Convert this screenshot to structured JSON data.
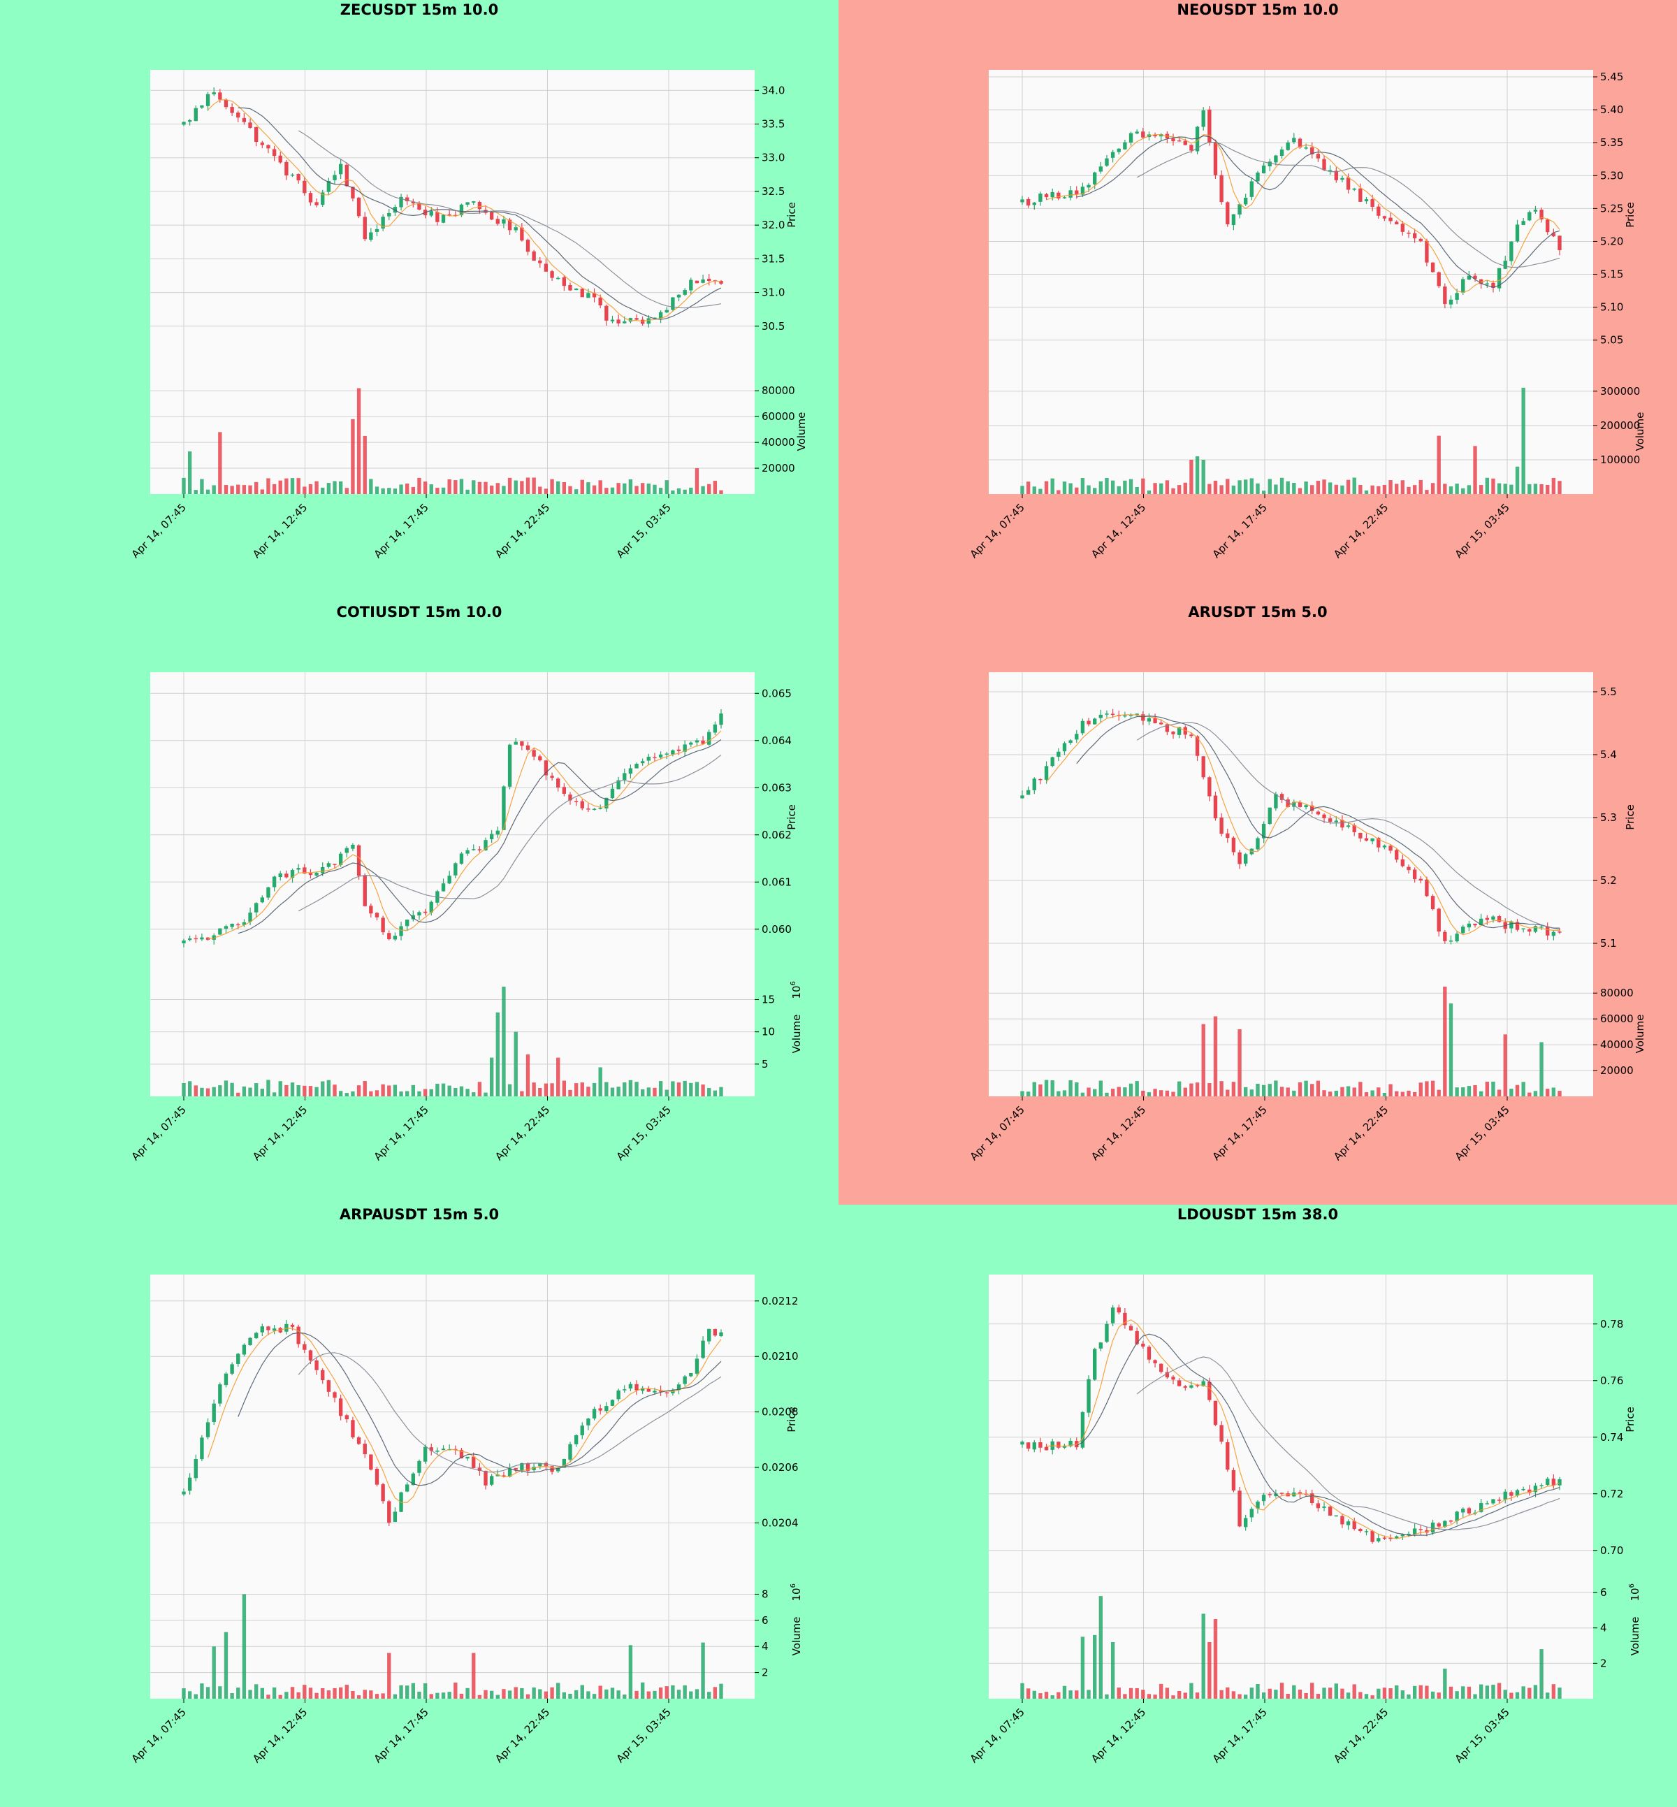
{
  "colors": {
    "bull_bg": "#8fffc4",
    "bear_bg": "#fca59a",
    "plot_bg": "#fafafa",
    "grid": "#d0d0d0",
    "up": "#26a96c",
    "down": "#e8444f",
    "ma_fast": "#f39a2e",
    "ma_slow": "#7e8590",
    "ma_mid": "#4a5a6a"
  },
  "x_ticks": [
    "Apr 14, 07:45",
    "Apr 14, 12:45",
    "Apr 14, 17:45",
    "Apr 14, 22:45",
    "Apr 15, 03:45"
  ],
  "price_label": "Price",
  "volume_label": "Volume",
  "charts": [
    {
      "title": "ZECUSDT 15m 10.0",
      "trend": "bull",
      "price_ticks": [
        "30.5",
        "31.0",
        "31.5",
        "32.0",
        "32.5",
        "33.0",
        "33.5",
        "34.0"
      ],
      "volume_ticks": [
        "20000",
        "40000",
        "60000",
        "80000"
      ],
      "volume_exp": "",
      "chart_data": {
        "type": "candlestick",
        "n_candles": 90,
        "price_range": [
          30.0,
          34.2
        ],
        "volume_range": [
          0,
          85000
        ],
        "path": [
          [
            0,
            33.5
          ],
          [
            5,
            34.0
          ],
          [
            10,
            33.5
          ],
          [
            15,
            33.0
          ],
          [
            22,
            32.3
          ],
          [
            26,
            32.9
          ],
          [
            30,
            31.8
          ],
          [
            36,
            32.4
          ],
          [
            42,
            32.1
          ],
          [
            48,
            32.3
          ],
          [
            55,
            31.9
          ],
          [
            60,
            31.3
          ],
          [
            68,
            30.9
          ],
          [
            70,
            30.6
          ],
          [
            78,
            30.6
          ],
          [
            85,
            31.2
          ],
          [
            89,
            31.1
          ]
        ],
        "volume_spikes": [
          [
            1,
            33000
          ],
          [
            6,
            48000
          ],
          [
            28,
            58000
          ],
          [
            29,
            82000
          ],
          [
            30,
            45000
          ],
          [
            85,
            20000
          ]
        ]
      }
    },
    {
      "title": "NEOUSDT 15m 10.0",
      "trend": "bear",
      "price_ticks": [
        "5.05",
        "5.10",
        "5.15",
        "5.20",
        "5.25",
        "5.30",
        "5.35",
        "5.40",
        "5.45"
      ],
      "volume_ticks": [
        "100000",
        "200000",
        "300000"
      ],
      "volume_exp": "",
      "chart_data": {
        "type": "candlestick",
        "n_candles": 90,
        "price_range": [
          5.02,
          5.45
        ],
        "volume_range": [
          0,
          320000
        ],
        "path": [
          [
            0,
            5.26
          ],
          [
            10,
            5.28
          ],
          [
            18,
            5.36
          ],
          [
            24,
            5.36
          ],
          [
            28,
            5.34
          ],
          [
            30,
            5.4
          ],
          [
            32,
            5.3
          ],
          [
            34,
            5.22
          ],
          [
            40,
            5.32
          ],
          [
            45,
            5.35
          ],
          [
            52,
            5.3
          ],
          [
            58,
            5.25
          ],
          [
            66,
            5.2
          ],
          [
            70,
            5.1
          ],
          [
            74,
            5.15
          ],
          [
            78,
            5.13
          ],
          [
            82,
            5.22
          ],
          [
            85,
            5.25
          ],
          [
            89,
            5.19
          ]
        ],
        "volume_spikes": [
          [
            28,
            100000
          ],
          [
            29,
            110000
          ],
          [
            30,
            100000
          ],
          [
            69,
            170000
          ],
          [
            75,
            140000
          ],
          [
            82,
            80000
          ],
          [
            83,
            310000
          ]
        ]
      }
    },
    {
      "title": "COTIUSDT 15m 10.0",
      "trend": "bull",
      "price_ticks": [
        "0.060",
        "0.061",
        "0.062",
        "0.063",
        "0.064",
        "0.065"
      ],
      "volume_ticks": [
        "5",
        "10",
        "15"
      ],
      "volume_exp": "6",
      "chart_data": {
        "type": "candlestick",
        "n_candles": 90,
        "price_range": [
          0.0593,
          0.0653
        ],
        "volume_range": [
          0,
          17
        ],
        "path": [
          [
            0,
            0.0597
          ],
          [
            10,
            0.0601
          ],
          [
            15,
            0.0612
          ],
          [
            22,
            0.0612
          ],
          [
            28,
            0.0617
          ],
          [
            30,
            0.0605
          ],
          [
            34,
            0.0598
          ],
          [
            40,
            0.0604
          ],
          [
            46,
            0.0615
          ],
          [
            52,
            0.062
          ],
          [
            54,
            0.064
          ],
          [
            58,
            0.0637
          ],
          [
            62,
            0.063
          ],
          [
            68,
            0.0625
          ],
          [
            74,
            0.0635
          ],
          [
            80,
            0.0638
          ],
          [
            86,
            0.064
          ],
          [
            89,
            0.0645
          ]
        ],
        "volume_spikes": [
          [
            51,
            6
          ],
          [
            52,
            13
          ],
          [
            53,
            17
          ],
          [
            55,
            10
          ],
          [
            57,
            6.5
          ],
          [
            62,
            6
          ],
          [
            69,
            4.5
          ]
        ]
      }
    },
    {
      "title": "ARUSDT 15m 5.0",
      "trend": "bear",
      "price_ticks": [
        "5.1",
        "5.2",
        "5.3",
        "5.4",
        "5.5"
      ],
      "volume_ticks": [
        "20000",
        "40000",
        "60000",
        "80000"
      ],
      "volume_exp": "",
      "chart_data": {
        "type": "candlestick",
        "n_candles": 90,
        "price_range": [
          5.07,
          5.52
        ],
        "volume_range": [
          0,
          85000
        ],
        "path": [
          [
            0,
            5.33
          ],
          [
            10,
            5.45
          ],
          [
            14,
            5.47
          ],
          [
            22,
            5.45
          ],
          [
            28,
            5.43
          ],
          [
            32,
            5.3
          ],
          [
            36,
            5.22
          ],
          [
            42,
            5.33
          ],
          [
            48,
            5.31
          ],
          [
            54,
            5.28
          ],
          [
            60,
            5.25
          ],
          [
            66,
            5.2
          ],
          [
            70,
            5.1
          ],
          [
            76,
            5.14
          ],
          [
            80,
            5.13
          ],
          [
            84,
            5.12
          ],
          [
            89,
            5.12
          ]
        ],
        "volume_spikes": [
          [
            30,
            56000
          ],
          [
            32,
            62000
          ],
          [
            36,
            52000
          ],
          [
            70,
            85000
          ],
          [
            71,
            72000
          ],
          [
            80,
            48000
          ],
          [
            86,
            42000
          ]
        ]
      }
    },
    {
      "title": "ARPAUSDT 15m 5.0",
      "trend": "bull",
      "price_ticks": [
        "0.0204",
        "0.0206",
        "0.0208",
        "0.0210",
        "0.0212"
      ],
      "volume_ticks": [
        "2",
        "4",
        "6",
        "8"
      ],
      "volume_exp": "6",
      "chart_data": {
        "type": "candlestick",
        "n_candles": 90,
        "price_range": [
          0.02025,
          0.02127
        ],
        "volume_range": [
          0,
          8.4
        ],
        "path": [
          [
            0,
            0.0205
          ],
          [
            6,
            0.0209
          ],
          [
            12,
            0.0211
          ],
          [
            18,
            0.0211
          ],
          [
            22,
            0.02095
          ],
          [
            26,
            0.0208
          ],
          [
            30,
            0.02065
          ],
          [
            34,
            0.0204
          ],
          [
            40,
            0.02068
          ],
          [
            46,
            0.02065
          ],
          [
            50,
            0.02055
          ],
          [
            56,
            0.0206
          ],
          [
            62,
            0.0206
          ],
          [
            68,
            0.0208
          ],
          [
            74,
            0.0209
          ],
          [
            80,
            0.02085
          ],
          [
            84,
            0.02095
          ],
          [
            87,
            0.0211
          ],
          [
            89,
            0.02107
          ]
        ],
        "volume_spikes": [
          [
            5,
            4
          ],
          [
            7,
            5.1
          ],
          [
            10,
            8
          ],
          [
            34,
            3.5
          ],
          [
            48,
            3.5
          ],
          [
            74,
            4.1
          ],
          [
            86,
            4.3
          ]
        ]
      }
    },
    {
      "title": "LDOUSDT 15m 38.0",
      "trend": "bull",
      "price_ticks": [
        "0.70",
        "0.72",
        "0.74",
        "0.76",
        "0.78"
      ],
      "volume_ticks": [
        "2",
        "4",
        "6"
      ],
      "volume_exp": "6",
      "chart_data": {
        "type": "candlestick",
        "n_candles": 90,
        "price_range": [
          0.695,
          0.795
        ],
        "volume_range": [
          0,
          6.2
        ],
        "path": [
          [
            0,
            0.737
          ],
          [
            9,
            0.737
          ],
          [
            12,
            0.77
          ],
          [
            15,
            0.785
          ],
          [
            20,
            0.772
          ],
          [
            24,
            0.76
          ],
          [
            28,
            0.758
          ],
          [
            30,
            0.76
          ],
          [
            34,
            0.73
          ],
          [
            36,
            0.71
          ],
          [
            40,
            0.72
          ],
          [
            46,
            0.72
          ],
          [
            52,
            0.712
          ],
          [
            58,
            0.704
          ],
          [
            64,
            0.706
          ],
          [
            70,
            0.71
          ],
          [
            78,
            0.718
          ],
          [
            84,
            0.722
          ],
          [
            89,
            0.725
          ]
        ],
        "volume_spikes": [
          [
            10,
            3.5
          ],
          [
            12,
            3.6
          ],
          [
            13,
            5.8
          ],
          [
            15,
            3.2
          ],
          [
            30,
            4.8
          ],
          [
            31,
            3.2
          ],
          [
            32,
            4.5
          ],
          [
            70,
            1.7
          ],
          [
            86,
            2.8
          ]
        ]
      }
    }
  ]
}
